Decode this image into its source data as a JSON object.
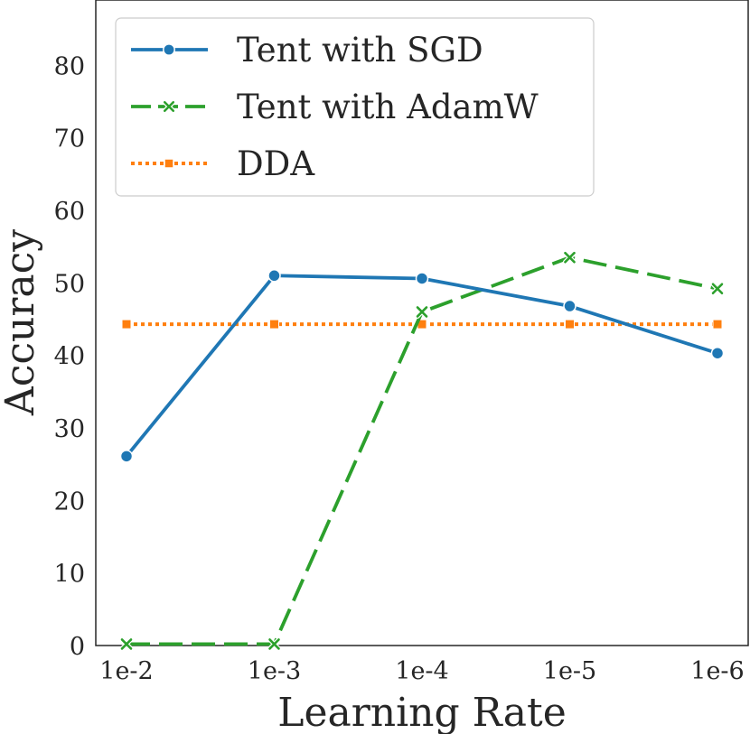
{
  "chart_data": {
    "type": "line",
    "title": "",
    "xlabel": "Learning Rate",
    "ylabel": "Accuracy",
    "categories": [
      "1e-2",
      "1e-3",
      "1e-4",
      "1e-5",
      "1e-6"
    ],
    "y_ticks": [
      0,
      10,
      20,
      30,
      40,
      50,
      60,
      70,
      80
    ],
    "y_tick_labels": [
      "0",
      "10",
      "20",
      "30",
      "40",
      "50",
      "60",
      "70",
      "80"
    ],
    "ylim": [
      0,
      89
    ],
    "grid": false,
    "legend_position": "top-left",
    "series": [
      {
        "name": "Tent with SGD",
        "values": [
          26.1,
          51.0,
          50.6,
          46.8,
          40.3
        ],
        "color": "#1f77b4",
        "line_style": "solid",
        "marker": "circle"
      },
      {
        "name": "Tent with AdamW",
        "values": [
          0.2,
          0.2,
          46.0,
          53.5,
          49.2
        ],
        "color": "#2ca02c",
        "line_style": "dashed",
        "marker": "x"
      },
      {
        "name": "DDA",
        "values": [
          44.3,
          44.3,
          44.3,
          44.3,
          44.3
        ],
        "color": "#ff7f0e",
        "line_style": "dotted",
        "marker": "square"
      }
    ]
  }
}
